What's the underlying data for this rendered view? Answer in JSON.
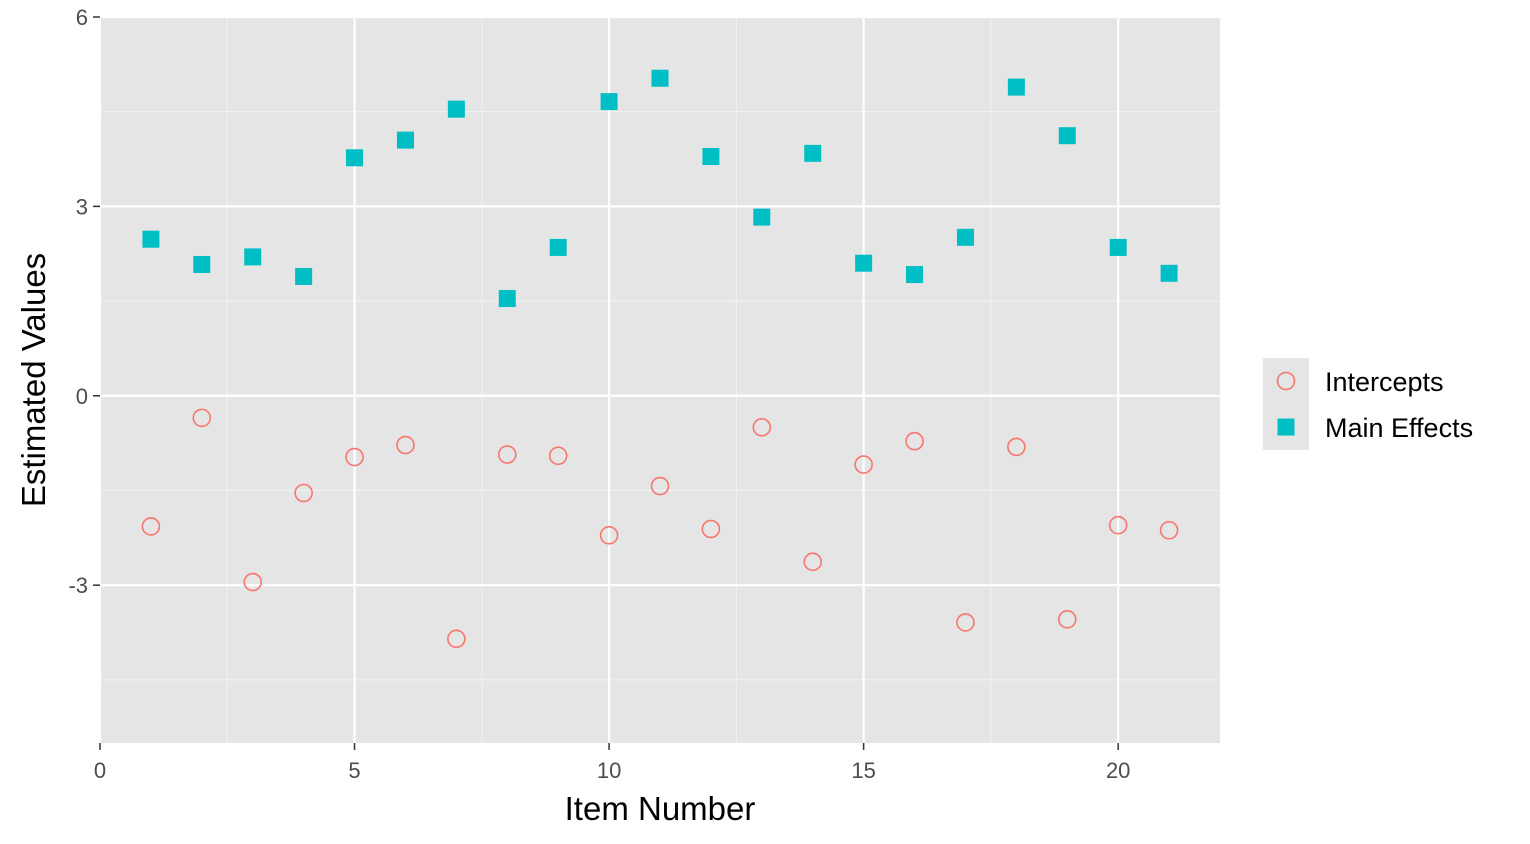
{
  "chart_data": {
    "type": "scatter",
    "title": "",
    "xlabel": "Item Number",
    "ylabel": "Estimated Values",
    "xlim": [
      0,
      22
    ],
    "ylim": [
      -5.5,
      6
    ],
    "x_ticks": [
      0,
      5,
      10,
      15,
      20
    ],
    "x_tick_labels": [
      "0",
      "5",
      "10",
      "15",
      "20"
    ],
    "y_ticks": [
      -3,
      0,
      3,
      6
    ],
    "y_tick_labels": [
      "-3",
      "0",
      "3",
      "6"
    ],
    "grid": true,
    "legend_position": "right",
    "x": [
      1,
      2,
      3,
      4,
      5,
      6,
      7,
      8,
      9,
      10,
      11,
      12,
      13,
      14,
      15,
      16,
      17,
      18,
      19,
      20,
      21
    ],
    "series": [
      {
        "name": "Intercepts",
        "marker": "open-circle",
        "color": "#F8766D",
        "values": [
          -2.07,
          -0.35,
          -2.95,
          -1.54,
          -0.97,
          -0.78,
          -3.85,
          -0.93,
          -0.95,
          -2.21,
          -1.43,
          -2.11,
          -0.5,
          -2.63,
          -1.09,
          -0.72,
          -3.59,
          -0.81,
          -3.54,
          -2.05,
          -2.13
        ]
      },
      {
        "name": "Main Effects",
        "marker": "filled-square",
        "color": "#00BFC4",
        "values": [
          2.48,
          2.08,
          2.2,
          1.89,
          3.77,
          4.05,
          4.54,
          1.54,
          2.35,
          4.66,
          5.03,
          3.79,
          2.83,
          3.84,
          2.1,
          1.92,
          2.51,
          4.89,
          4.12,
          2.35,
          1.94
        ]
      }
    ]
  },
  "colors": {
    "panel_background": "#E5E5E5",
    "grid_major": "#FFFFFF",
    "grid_minor": "#F2F2F2",
    "legend_key_background": "#E5E5E5"
  }
}
